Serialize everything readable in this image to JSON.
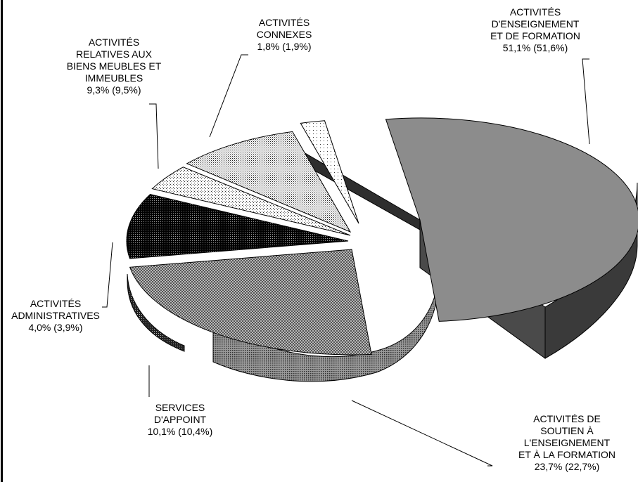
{
  "chart_data": {
    "type": "pie",
    "title": "",
    "style": "3d-exploded",
    "slices": [
      {
        "lines": [
          "ACTIVITÉS",
          "D'ENSEIGNEMENT",
          "ET DE FORMATION"
        ],
        "pct": "51,1%",
        "pct_prev": "(51,6%)",
        "value": 51.1,
        "previous": 51.6,
        "fill": "pat-grey",
        "color": "#8a8a8a"
      },
      {
        "lines": [
          "ACTIVITÉS DE",
          "SOUTIEN À",
          "L'ENSEIGNEMENT",
          "ET À LA FORMATION"
        ],
        "pct": "23,7%",
        "pct_prev": "(22,7%)",
        "value": 23.7,
        "previous": 22.7,
        "fill": "pat-checker",
        "color": "#666666"
      },
      {
        "lines": [
          "SERVICES",
          "D'APPOINT"
        ],
        "pct": "10,1%",
        "pct_prev": "(10,4%)",
        "value": 10.1,
        "previous": 10.4,
        "fill": "pat-dense",
        "color": "#111111"
      },
      {
        "lines": [
          "ACTIVITÉS",
          "ADMINISTRATIVES"
        ],
        "pct": "4,0%",
        "pct_prev": "(3,9%)",
        "value": 4.0,
        "previous": 3.9,
        "fill": "pat-light",
        "color": "#f0f0f0"
      },
      {
        "lines": [
          "ACTIVITÉS",
          "RELATIVES AUX",
          "BIENS MEUBLES ET",
          "IMMEUBLES"
        ],
        "pct": "9,3%",
        "pct_prev": "(9,5%)",
        "value": 9.3,
        "previous": 9.5,
        "fill": "pat-medium",
        "color": "#dddddd"
      },
      {
        "lines": [
          "ACTIVITÉS",
          "CONNEXES"
        ],
        "pct": "1,8%",
        "pct_prev": "(1,9%)",
        "value": 1.8,
        "previous": 1.9,
        "fill": "pat-sparse",
        "color": "#f4f4f4"
      }
    ]
  }
}
